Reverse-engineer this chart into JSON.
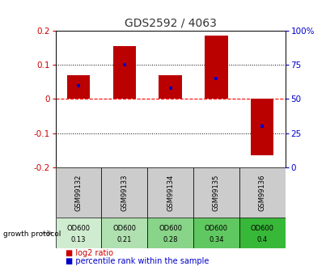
{
  "title": "GDS2592 / 4063",
  "samples": [
    "GSM99132",
    "GSM99133",
    "GSM99134",
    "GSM99135",
    "GSM99136"
  ],
  "log2_ratios": [
    0.07,
    0.155,
    0.07,
    0.185,
    -0.165
  ],
  "percentile_ranks": [
    60,
    75,
    58,
    65,
    30
  ],
  "protocol_labels_line1": [
    "OD600",
    "OD600",
    "OD600",
    "OD600",
    "OD600"
  ],
  "protocol_labels_line2": [
    "0.13",
    "0.21",
    "0.28",
    "0.34",
    "0.4"
  ],
  "proto_colors": [
    "#d0ecd0",
    "#b0e0b0",
    "#88d488",
    "#60c860",
    "#38b838"
  ],
  "bar_color": "#bb0000",
  "blue_color": "#0000cc",
  "ylim": [
    -0.2,
    0.2
  ],
  "right_ylim": [
    0,
    100
  ],
  "yticks_left": [
    -0.2,
    -0.1,
    0.0,
    0.1,
    0.2
  ],
  "yticks_right": [
    0,
    25,
    50,
    75,
    100
  ],
  "bar_width": 0.5,
  "title_color": "#333333",
  "left_tick_color": "#cc0000",
  "right_tick_color": "#0000cc",
  "gray_bg": "#cccccc",
  "legend_log2_color": "#cc0000",
  "legend_pct_color": "#0000cc"
}
